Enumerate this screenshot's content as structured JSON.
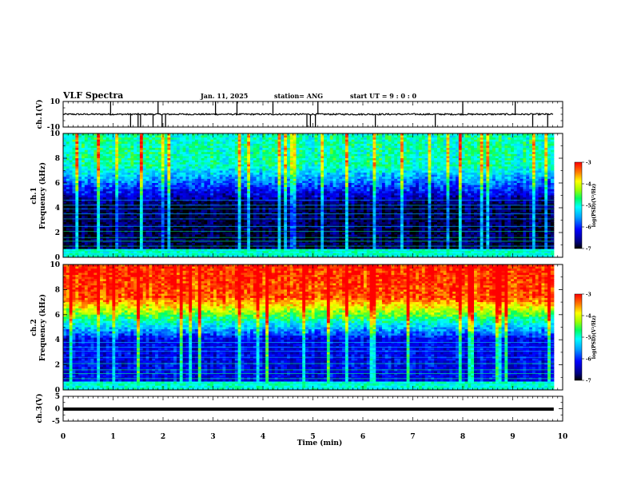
{
  "header": {
    "title": "VLF Spectra",
    "date": "Jan. 11, 2025",
    "station": "station= ANG",
    "start": "start  UT =   9 : 0  : 0"
  },
  "chart_data": [
    {
      "type": "line",
      "panel": "ch1-waveform",
      "ylabel": "ch.1(V)",
      "ylim": [
        -10,
        10
      ],
      "yticks": [
        "10",
        "-10"
      ],
      "baseline": 0,
      "noise_amplitude_v": 1,
      "spikes_min": [
        0.95,
        1.35,
        1.5,
        1.55,
        1.8,
        1.9,
        1.98,
        2.05,
        3.05,
        3.48,
        4.2,
        4.88,
        4.95,
        5.05,
        5.1,
        6.25,
        7.45,
        8.0,
        9.05,
        9.4,
        9.7
      ]
    },
    {
      "type": "heatmap",
      "panel": "ch1-spectrogram",
      "ylabel": "ch.1\nFrequency (kHz)",
      "ylim": [
        0,
        10
      ],
      "yticks": [
        "0",
        "2",
        "4",
        "6",
        "8",
        "10"
      ],
      "colorbar": {
        "label": "log(PSD)(V²/Hz)",
        "range": [
          -7,
          -3
        ],
        "ticks": [
          "-3",
          "-4",
          "-5",
          "-6",
          "-7"
        ]
      },
      "description_levels": {
        "low_band_khz": [
          0,
          4.2
        ],
        "low_band_level": -6.8,
        "high_band_level": -4.9
      }
    },
    {
      "type": "heatmap",
      "panel": "ch2-spectrogram",
      "ylabel": "ch.2\nFrequency (kHz)",
      "ylim": [
        0,
        10
      ],
      "yticks": [
        "0",
        "2",
        "4",
        "6",
        "8",
        "10"
      ],
      "colorbar": {
        "label": "log(PSD)(V²/Hz)",
        "range": [
          -7,
          -3
        ],
        "ticks": [
          "-3",
          "-4",
          "-5",
          "-6",
          "-7"
        ]
      },
      "description_levels": {
        "low_band_khz": [
          0,
          4
        ],
        "low_band_level": -6.2,
        "high_band_level": -3.5
      }
    },
    {
      "type": "line",
      "panel": "ch3-waveform",
      "ylabel": "ch.3(V)",
      "ylim": [
        -5,
        5
      ],
      "yticks": [
        "5",
        "0",
        "-5"
      ],
      "baseline": -0.5
    }
  ],
  "xaxis": {
    "label": "Time  (min)",
    "xlim": [
      0,
      10
    ],
    "ticks": [
      "0",
      "1",
      "2",
      "3",
      "4",
      "5",
      "6",
      "7",
      "8",
      "9",
      "10"
    ],
    "data_end_min": 9.82
  }
}
